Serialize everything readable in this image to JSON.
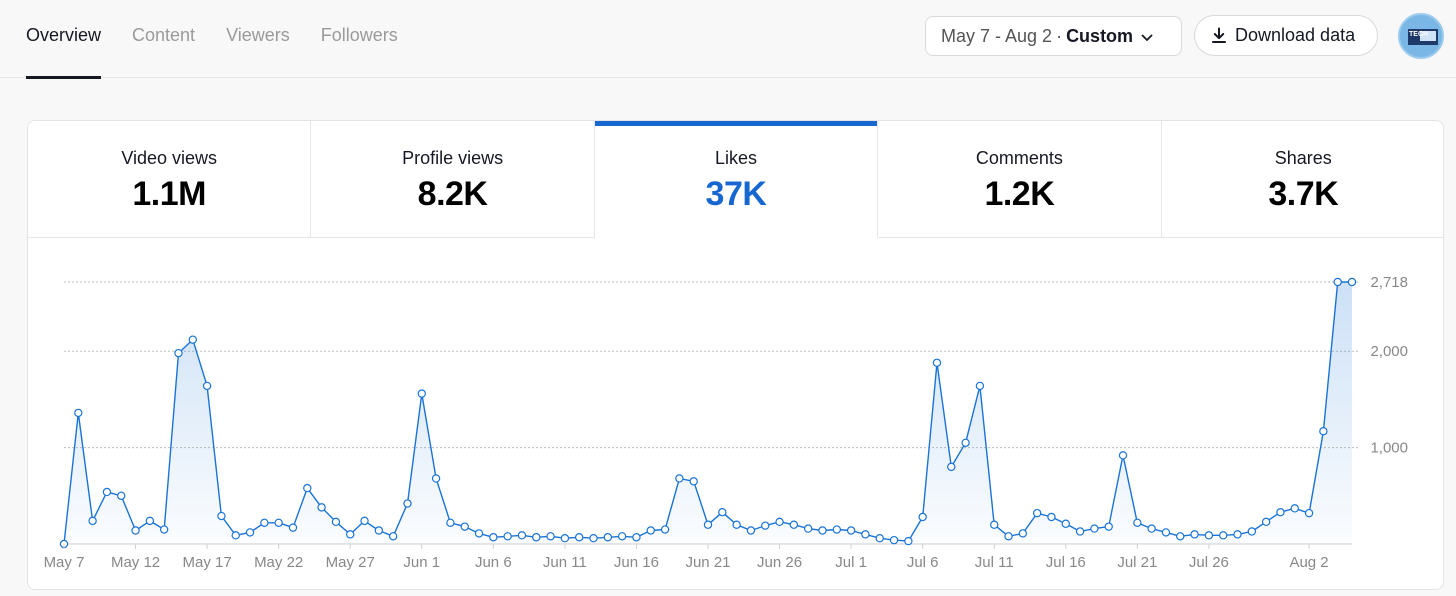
{
  "tabs": [
    {
      "label": "Overview",
      "active": true
    },
    {
      "label": "Content",
      "active": false
    },
    {
      "label": "Viewers",
      "active": false
    },
    {
      "label": "Followers",
      "active": false
    }
  ],
  "date_range": {
    "range": "May 7 - Aug 2",
    "separator": "·",
    "mode": "Custom"
  },
  "download_label": "Download data",
  "avatar_label": "TECH",
  "metrics": [
    {
      "label": "Video views",
      "value": "1.1M",
      "active": false
    },
    {
      "label": "Profile views",
      "value": "8.2K",
      "active": false
    },
    {
      "label": "Likes",
      "value": "37K",
      "active": true
    },
    {
      "label": "Comments",
      "value": "1.2K",
      "active": false
    },
    {
      "label": "Shares",
      "value": "3.7K",
      "active": false
    }
  ],
  "colors": {
    "accent": "#1667d0",
    "line": "#1a73d6",
    "grid": "#bdbdbd",
    "axis": "#888888"
  },
  "chart_data": {
    "type": "area",
    "x_tick_labels": [
      "May 7",
      "May 12",
      "May 17",
      "May 22",
      "May 27",
      "Jun 1",
      "Jun 6",
      "Jun 11",
      "Jun 16",
      "Jun 21",
      "Jun 26",
      "Jul 1",
      "Jul 6",
      "Jul 11",
      "Jul 16",
      "Jul 21",
      "Jul 26",
      "Aug 2"
    ],
    "x_tick_index": [
      0,
      5,
      10,
      15,
      20,
      25,
      30,
      35,
      40,
      45,
      50,
      55,
      60,
      65,
      70,
      75,
      80,
      87
    ],
    "y_ticks": [
      1000,
      2000,
      2718
    ],
    "y_tick_labels": [
      "1,000",
      "2,000",
      "2,718"
    ],
    "ylim": [
      0,
      2718
    ],
    "grid": true,
    "series": [
      {
        "values": [
          0,
          1360,
          240,
          540,
          500,
          140,
          240,
          150,
          1980,
          2120,
          1640,
          290,
          90,
          120,
          220,
          220,
          170,
          580,
          380,
          230,
          100,
          240,
          140,
          80,
          420,
          1560,
          680,
          220,
          180,
          110,
          70,
          80,
          90,
          70,
          80,
          60,
          70,
          60,
          70,
          80,
          70,
          140,
          150,
          680,
          650,
          200,
          330,
          200,
          140,
          190,
          230,
          200,
          160,
          140,
          150,
          140,
          100,
          60,
          40,
          30,
          280,
          1880,
          800,
          1050,
          1640,
          200,
          80,
          110,
          320,
          280,
          210,
          130,
          160,
          180,
          920,
          220,
          160,
          120,
          80,
          100,
          90,
          90,
          100,
          130,
          230,
          330,
          370,
          320,
          1170,
          2718,
          2718
        ]
      }
    ]
  }
}
